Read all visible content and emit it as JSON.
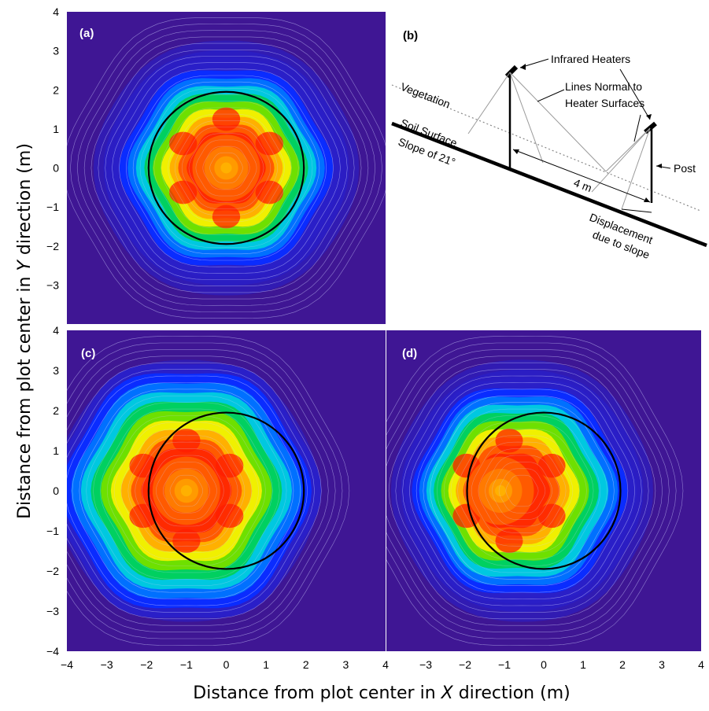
{
  "figure": {
    "ylabel_pre": "Distance from plot center in ",
    "ylabel_var": "Y",
    "ylabel_post": " direction (m)",
    "xlabel_pre": "Distance from plot center in ",
    "xlabel_var": "X",
    "xlabel_post": " direction (m)",
    "colors": {
      "background": "#3f1694",
      "ramp": [
        "#3f1694",
        "#2a1fc8",
        "#0a2cff",
        "#0070ff",
        "#00c8e0",
        "#00d060",
        "#6ee000",
        "#f0f000",
        "#ffb000",
        "#ff5a00",
        "#ff2a00"
      ],
      "contour_lines": "#cfd2ff",
      "circle": "#000000"
    }
  },
  "panels": [
    {
      "id": "a",
      "label": "(a)",
      "label_color": "#ffffff"
    },
    {
      "id": "c",
      "label": "(c)",
      "label_color": "#ffffff"
    },
    {
      "id": "d",
      "label": "(d)",
      "label_color": "#ffffff"
    }
  ],
  "diagram_b": {
    "label": "(b)",
    "infrared_heaters": "Infrared Heaters",
    "lines_normal_1": "Lines Normal to",
    "lines_normal_2": "Heater Surfaces",
    "vegetation": "Vegetation",
    "soil_surface": "Soil Surface",
    "slope": "Slope of 21°",
    "spacing": "4 m",
    "post": "Post",
    "displacement_1": "Displacement",
    "displacement_2": "due to slope"
  },
  "chart_data": [
    {
      "type": "heatmap",
      "panel": "(a)",
      "xlim": [
        -4,
        4
      ],
      "ylim": [
        -4,
        4
      ],
      "x_ticks": [],
      "y_ticks": [
        -3,
        -2,
        -1,
        0,
        1,
        2,
        3,
        4
      ],
      "field_center": [
        0,
        0
      ],
      "field_radius": 2.15,
      "heater_count": 6,
      "peak_center": [
        0,
        0
      ],
      "circle": {
        "center": [
          0,
          0
        ],
        "radius": 1.95
      }
    },
    {
      "type": "heatmap",
      "panel": "(c)",
      "xlim": [
        -4,
        4
      ],
      "ylim": [
        -4,
        4
      ],
      "x_ticks": [
        -4,
        -3,
        -2,
        -1,
        0,
        1,
        2,
        3,
        4
      ],
      "y_ticks": [
        -4,
        -3,
        -2,
        -1,
        0,
        1,
        2,
        3,
        4
      ],
      "field_center": [
        -1,
        0
      ],
      "field_radius": 2.55,
      "heater_count": 6,
      "peak_center": [
        -1,
        0
      ],
      "circle": {
        "center": [
          0,
          0
        ],
        "radius": 1.95
      }
    },
    {
      "type": "heatmap",
      "panel": "(d)",
      "xlim": [
        -4,
        4
      ],
      "ylim": [
        -4,
        4
      ],
      "x_ticks": [
        -3,
        -2,
        -1,
        0,
        1,
        2,
        3,
        4
      ],
      "y_ticks": [],
      "field_center": [
        -0.55,
        0
      ],
      "field_radius": 2.2,
      "heater_count": 6,
      "peak_center": [
        -1.1,
        0
      ],
      "circle": {
        "center": [
          0,
          0
        ],
        "radius": 1.95
      }
    }
  ]
}
